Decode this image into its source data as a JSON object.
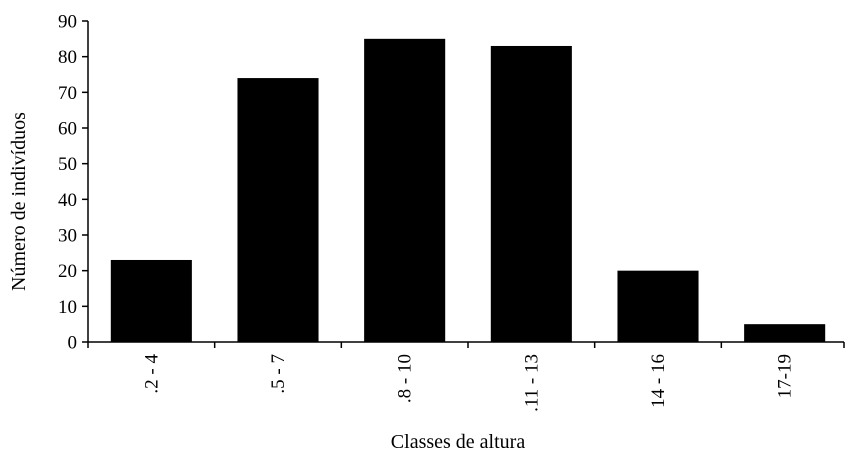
{
  "chart_data": {
    "type": "bar",
    "title": "",
    "xlabel": "Classes de altura",
    "ylabel": "Número de indivíduos",
    "categories": [
      ".2 - 4",
      ".5 - 7",
      ".8 - 10",
      ".11 - 13",
      "14 - 16",
      "17-19"
    ],
    "values": [
      23,
      74,
      85,
      83,
      20,
      5
    ],
    "ylim": [
      0,
      90
    ],
    "yticks": [
      0,
      10,
      20,
      30,
      40,
      50,
      60,
      70,
      80,
      90
    ],
    "grid": false,
    "legend": "none",
    "bar_color": "#000000"
  }
}
